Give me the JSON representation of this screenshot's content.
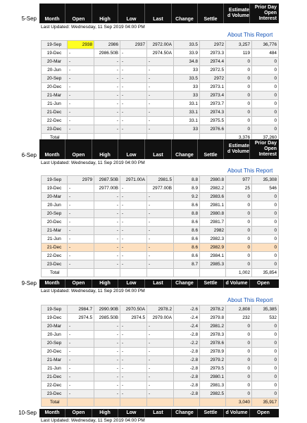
{
  "columns": {
    "month": "Month",
    "open": "Open",
    "high": "High",
    "low": "Low",
    "last": "Last",
    "change": "Change",
    "settle": "Settle",
    "volume": [
      "Estimate",
      "d Volume"
    ],
    "interest": [
      "Prior Day",
      "Open",
      "Interest"
    ]
  },
  "about_label": "About This Report",
  "total_label": "Total",
  "sections": [
    {
      "date": "5-Sep",
      "updated": "Last Updated: Wednesday, 11 Sep 2019 04:00 PM",
      "rows": [
        [
          "19-Sep",
          "2938",
          "2986",
          "2937",
          "2972.00A",
          "33.5",
          "2972",
          "3,257",
          "36,776"
        ],
        [
          "19-Dec",
          "-",
          "2986.50B",
          "-",
          "2974.50A",
          "33.9",
          "2973.3",
          "119",
          "484"
        ],
        [
          "20-Mar",
          "-",
          "-",
          "-",
          "-",
          "34.8",
          "2974.4",
          "0",
          "0"
        ],
        [
          "20-Jun",
          "-",
          "-",
          "-",
          "-",
          "33",
          "2972.5",
          "0",
          "0"
        ],
        [
          "20-Sep",
          "-",
          "-",
          "-",
          "-",
          "33.5",
          "2972",
          "0",
          "0"
        ],
        [
          "20-Dec",
          "-",
          "-",
          "-",
          "-",
          "33",
          "2973.1",
          "0",
          "0"
        ],
        [
          "21-Mar",
          "-",
          "-",
          "-",
          "-",
          "33",
          "2973.4",
          "0",
          "0"
        ],
        [
          "21-Jun",
          "-",
          "-",
          "-",
          "-",
          "33.1",
          "2973.7",
          "0",
          "0"
        ],
        [
          "21-Dec",
          "-",
          "-",
          "-",
          "-",
          "33.1",
          "2974.3",
          "0",
          "0"
        ],
        [
          "22-Dec",
          "-",
          "-",
          "-",
          "-",
          "33.1",
          "2975.5",
          "0",
          "0"
        ],
        [
          "23-Dec",
          "-",
          "-",
          "-",
          "-",
          "33",
          "2976.6",
          "0",
          "0"
        ]
      ],
      "total_volume": "3,376",
      "total_interest": "37,260"
    },
    {
      "date": "6-Sep",
      "updated": "Last Updated: Wednesday, 11 Sep 2019 04:00 PM",
      "rows": [
        [
          "19-Sep",
          "2979",
          "2987.50B",
          "2971.00A",
          "2981.5",
          "8.8",
          "2980.8",
          "977",
          "35,308"
        ],
        [
          "19-Dec",
          "-",
          "2977.00B",
          "-",
          "2977.00B",
          "8.9",
          "2982.2",
          "25",
          "546"
        ],
        [
          "20-Mar",
          "-",
          "-",
          "-",
          "-",
          "9.2",
          "2983.6",
          "0",
          "0"
        ],
        [
          "20-Jun",
          "-",
          "-",
          "-",
          "-",
          "8.6",
          "2981.1",
          "0",
          "0"
        ],
        [
          "20-Sep",
          "-",
          "-",
          "-",
          "-",
          "8.8",
          "2980.8",
          "0",
          "0"
        ],
        [
          "20-Dec",
          "-",
          "-",
          "-",
          "-",
          "8.6",
          "2981.7",
          "0",
          "0"
        ],
        [
          "21-Mar",
          "-",
          "-",
          "-",
          "-",
          "8.6",
          "2982",
          "0",
          "0"
        ],
        [
          "21-Jun",
          "-",
          "-",
          "-",
          "-",
          "8.6",
          "2982.3",
          "0",
          "0"
        ],
        [
          "21-Dec",
          "-",
          "-",
          "-",
          "-",
          "8.6",
          "2982.9",
          "0",
          "0"
        ],
        [
          "22-Dec",
          "-",
          "-",
          "-",
          "-",
          "8.6",
          "2984.1",
          "0",
          "0"
        ],
        [
          "23-Dec",
          "-",
          "-",
          "-",
          "-",
          "8.7",
          "2985.3",
          "0",
          "0"
        ]
      ],
      "total_volume": "1,002",
      "total_interest": "35,854"
    },
    {
      "date": "9-Sep",
      "updated": "Last Updated: Wednesday, 11 Sep 2019 04:00 PM",
      "rows": [
        [
          "19-Sep",
          "2984.7",
          "2990.90B",
          "2970.50A",
          "2978.2",
          "-2.6",
          "2978.2",
          "2,808",
          "35,385"
        ],
        [
          "19-Dec",
          "2974.5",
          "2985.50B",
          "2974.5",
          "2979.00A",
          "-2.4",
          "2979.8",
          "232",
          "532"
        ],
        [
          "20-Mar",
          "-",
          "-",
          "-",
          "-",
          "-2.4",
          "2981.2",
          "0",
          "0"
        ],
        [
          "20-Jun",
          "-",
          "-",
          "-",
          "-",
          "-2.8",
          "2978.3",
          "0",
          "0"
        ],
        [
          "20-Sep",
          "-",
          "-",
          "-",
          "-",
          "-2.2",
          "2978.6",
          "0",
          "0"
        ],
        [
          "20-Dec",
          "-",
          "-",
          "-",
          "-",
          "-2.8",
          "2978.9",
          "0",
          "0"
        ],
        [
          "21-Mar",
          "-",
          "-",
          "-",
          "-",
          "-2.8",
          "2979.2",
          "0",
          "0"
        ],
        [
          "21-Jun",
          "-",
          "-",
          "-",
          "-",
          "-2.8",
          "2979.5",
          "0",
          "0"
        ],
        [
          "21-Dec",
          "-",
          "-",
          "-",
          "-",
          "-2.8",
          "2980.1",
          "0",
          "0"
        ],
        [
          "22-Dec",
          "-",
          "-",
          "-",
          "-",
          "-2.8",
          "2981.3",
          "0",
          "0"
        ],
        [
          "23-Dec",
          "-",
          "-",
          "-",
          "-",
          "-2.8",
          "2982.5",
          "0",
          "0"
        ]
      ],
      "total_volume": "3,040",
      "total_interest": "35,917"
    },
    {
      "date": "10-Sep",
      "updated": "Last Updated: Wednesday, 11 Sep 2019 04:00 PM"
    }
  ]
}
